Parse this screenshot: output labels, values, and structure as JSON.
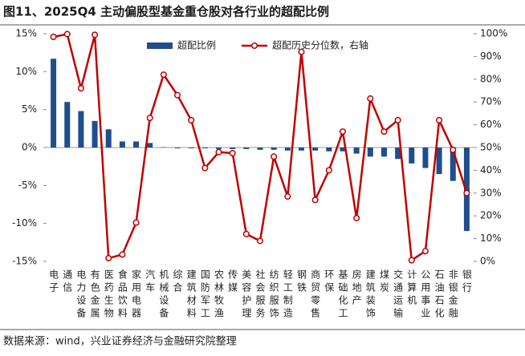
{
  "chart_data": {
    "type": "bar_line",
    "title": "图11、2025Q4 主动偏股型基金重仓股对各行业的超配比例",
    "source": "数据来源：wind，兴业证券经济与金融研究院整理",
    "categories": [
      "电子",
      "通信",
      "电力设备",
      "有色金属",
      "医药生物",
      "食品饮料",
      "家用电器",
      "汽车",
      "机械设备",
      "综合",
      "建筑材料",
      "国防军工",
      "农林牧渔",
      "传媒",
      "美容护理",
      "社会服务",
      "纺织服饰",
      "轻工制造",
      "钢铁",
      "商贸零售",
      "环保",
      "基础化工",
      "房地产",
      "建筑装饰",
      "煤炭",
      "交通运输",
      "计算机",
      "公用事业",
      "石油石化",
      "非银金融",
      "银行"
    ],
    "series": [
      {
        "name": "超配比例",
        "color": "#1f4e8c",
        "kind": "bar",
        "values": [
          11.7,
          6.0,
          4.8,
          3.5,
          2.4,
          0.8,
          0.8,
          0.6,
          0.05,
          -0.1,
          -0.1,
          -0.1,
          -0.2,
          -0.2,
          -0.2,
          -0.3,
          -0.3,
          -0.4,
          -0.4,
          -0.4,
          -0.5,
          -0.5,
          -0.8,
          -1.2,
          -1.2,
          -1.5,
          -2.1,
          -2.7,
          -3.5,
          -4.4,
          -11.0
        ]
      },
      {
        "name": "超配历史分位数，右轴",
        "color": "#c00000",
        "kind": "line",
        "axis": "y2",
        "values": [
          98.6,
          99.8,
          76,
          99.5,
          1.4,
          3,
          17,
          63,
          82,
          73,
          62,
          41,
          48,
          47.5,
          12,
          9,
          46,
          28.5,
          92,
          27,
          40,
          57,
          19,
          71.5,
          57,
          62,
          0.5,
          4.5,
          62,
          49,
          30
        ]
      }
    ],
    "ylim": [
      -15,
      15
    ],
    "yticks": [
      {
        "value": -15,
        "label": "-15%"
      },
      {
        "value": -10,
        "label": "-10%"
      },
      {
        "value": -5,
        "label": "-5%"
      },
      {
        "value": 0,
        "label": "0%"
      },
      {
        "value": 5,
        "label": "5%"
      },
      {
        "value": 10,
        "label": "10%"
      },
      {
        "value": 15,
        "label": "15%"
      }
    ],
    "y2lim": [
      0,
      100
    ],
    "y2ticks": [
      {
        "value": 0,
        "label": "0%"
      },
      {
        "value": 10,
        "label": "10%"
      },
      {
        "value": 20,
        "label": "20%"
      },
      {
        "value": 30,
        "label": "30%"
      },
      {
        "value": 40,
        "label": "40%"
      },
      {
        "value": 50,
        "label": "50%"
      },
      {
        "value": 60,
        "label": "60%"
      },
      {
        "value": 70,
        "label": "70%"
      },
      {
        "value": 80,
        "label": "80%"
      },
      {
        "value": 90,
        "label": "90%"
      },
      {
        "value": 100,
        "label": "100%"
      }
    ]
  }
}
